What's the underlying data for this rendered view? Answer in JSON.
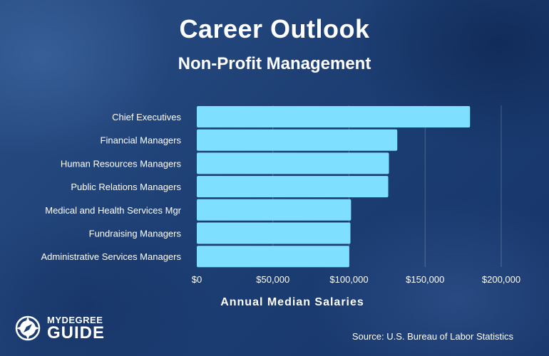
{
  "header": {
    "title": "Career Outlook",
    "subtitle": "Non-Profit Management"
  },
  "chart_data": {
    "type": "bar",
    "orientation": "horizontal",
    "categories": [
      "Chief Executives",
      "Financial Managers",
      "Human Resources Managers",
      "Public Relations Managers",
      "Medical and Health Services Mgr",
      "Fundraising Managers",
      "Administrative Services Managers"
    ],
    "values": [
      179520,
      131710,
      126230,
      125780,
      101340,
      100930,
      100170
    ],
    "xlabel": "Annual Median Salaries",
    "xlim": [
      0,
      200000
    ],
    "xticks": [
      0,
      50000,
      100000,
      150000,
      200000
    ],
    "xtick_labels": [
      "$0",
      "$50,000",
      "$100,000",
      "$150,000",
      "$200,000"
    ],
    "grid": "vertical",
    "bar_color": "#7fdfff"
  },
  "footer": {
    "source": "Source: U.S. Bureau of Labor Statistics",
    "logo_top": "MYDEGREE",
    "logo_bottom": "GUIDE"
  }
}
